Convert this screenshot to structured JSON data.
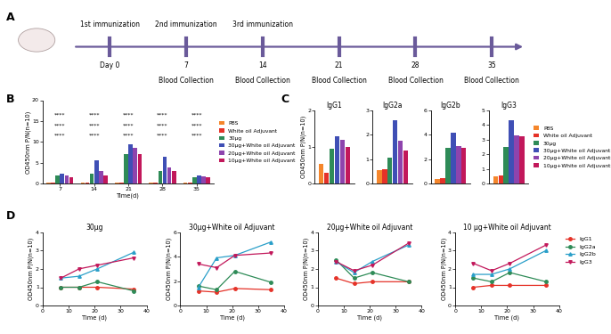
{
  "diagram": {
    "panel": "A",
    "events": [
      {
        "top": "1st immunization",
        "day": "Day 0",
        "bottom": null
      },
      {
        "top": "2nd immunization",
        "day": "7",
        "bottom": "Blood Collection"
      },
      {
        "top": "3rd immunization",
        "day": "14",
        "bottom": "Blood Collection"
      },
      {
        "top": null,
        "day": "21",
        "bottom": "Blood Collection"
      },
      {
        "top": null,
        "day": "28",
        "bottom": "Blood Collection"
      },
      {
        "top": null,
        "day": "35",
        "bottom": "Blood Collection"
      }
    ]
  },
  "chart_data": [
    {
      "panel": "B",
      "type": "bar",
      "categories": [
        "7",
        "14",
        "21",
        "28",
        "35"
      ],
      "x_label": "Time(d)",
      "y_label": "OD450nm P/N(n=10)",
      "ylim": [
        0,
        20
      ],
      "yticks": [
        0,
        5,
        10,
        15,
        20
      ],
      "legend": "center left",
      "series": [
        {
          "name": "PBS",
          "color": "#f5862b",
          "values": [
            0.3,
            0.3,
            0.3,
            0.3,
            0.3
          ]
        },
        {
          "name": "White oil Adjuvant",
          "color": "#e53228",
          "values": [
            0.3,
            0.3,
            0.3,
            0.3,
            0.3
          ]
        },
        {
          "name": "30μg",
          "color": "#2e8b57",
          "values": [
            2.0,
            2.5,
            7.0,
            3.0,
            1.5
          ]
        },
        {
          "name": "30μg+White oil Adjuvant",
          "color": "#3f4fb5",
          "values": [
            2.5,
            5.5,
            9.5,
            6.5,
            2.0
          ]
        },
        {
          "name": "20μg+White oil Adjuvant",
          "color": "#8e44ad",
          "values": [
            2.0,
            3.0,
            8.5,
            4.0,
            1.8
          ]
        },
        {
          "name": "10μg+White oil Adjuvant",
          "color": "#c2185b",
          "values": [
            1.5,
            2.0,
            7.0,
            3.0,
            1.5
          ]
        }
      ],
      "annotations": [
        {
          "category": "7",
          "texts": [
            "****",
            "****",
            "****"
          ]
        },
        {
          "category": "14",
          "texts": [
            "****",
            "****",
            "****"
          ]
        },
        {
          "category": "21",
          "texts": [
            "****",
            "****",
            "****"
          ]
        },
        {
          "category": "28",
          "texts": [
            "****",
            "****",
            "****"
          ]
        },
        {
          "category": "35",
          "texts": [
            "****",
            "****",
            "****"
          ]
        }
      ]
    },
    {
      "panel": "C",
      "type": "bar",
      "title": "IgG1",
      "categories": [
        null
      ],
      "y_label": "OD450nm P/N(n=10)",
      "ylim": [
        0,
        2
      ],
      "yticks": [
        0,
        1,
        2
      ],
      "series": [
        {
          "name": "PBS",
          "color": "#f5862b",
          "values": [
            0.55
          ]
        },
        {
          "name": "White oil Adjuvant",
          "color": "#e53228",
          "values": [
            0.3
          ]
        },
        {
          "name": "30μg",
          "color": "#2e8b57",
          "values": [
            0.95
          ]
        },
        {
          "name": "30μg+White oil Adjuvant",
          "color": "#3f4fb5",
          "values": [
            1.3
          ]
        },
        {
          "name": "20μg+White oil Adjuvant",
          "color": "#8e44ad",
          "values": [
            1.2
          ]
        },
        {
          "name": "10μg+White oil Adjuvant",
          "color": "#c2185b",
          "values": [
            1.0
          ]
        }
      ]
    },
    {
      "type": "bar",
      "title": "IgG2a",
      "categories": [
        null
      ],
      "ylim": [
        0,
        3
      ],
      "yticks": [
        0,
        1,
        2,
        3
      ],
      "series": [
        {
          "name": "PBS",
          "color": "#f5862b",
          "values": [
            0.55
          ]
        },
        {
          "name": "White oil Adjuvant",
          "color": "#e53228",
          "values": [
            0.6
          ]
        },
        {
          "name": "30μg",
          "color": "#2e8b57",
          "values": [
            1.05
          ]
        },
        {
          "name": "30μg+White oil Adjuvant",
          "color": "#3f4fb5",
          "values": [
            2.6
          ]
        },
        {
          "name": "20μg+White oil Adjuvant",
          "color": "#8e44ad",
          "values": [
            1.75
          ]
        },
        {
          "name": "10μg+White oil Adjuvant",
          "color": "#c2185b",
          "values": [
            1.35
          ]
        }
      ]
    },
    {
      "type": "bar",
      "title": "IgG2b",
      "categories": [
        null
      ],
      "ylim": [
        0,
        6
      ],
      "yticks": [
        0,
        2,
        4,
        6
      ],
      "series": [
        {
          "name": "PBS",
          "color": "#f5862b",
          "values": [
            0.4
          ]
        },
        {
          "name": "White oil Adjuvant",
          "color": "#e53228",
          "values": [
            0.45
          ]
        },
        {
          "name": "30μg",
          "color": "#2e8b57",
          "values": [
            2.9
          ]
        },
        {
          "name": "30μg+White oil Adjuvant",
          "color": "#3f4fb5",
          "values": [
            4.2
          ]
        },
        {
          "name": "20μg+White oil Adjuvant",
          "color": "#8e44ad",
          "values": [
            3.1
          ]
        },
        {
          "name": "10μg+White oil Adjuvant",
          "color": "#c2185b",
          "values": [
            2.9
          ]
        }
      ]
    },
    {
      "type": "bar",
      "title": "IgG3",
      "categories": [
        null
      ],
      "ylim": [
        0,
        5
      ],
      "yticks": [
        0,
        1,
        2,
        3,
        4,
        5
      ],
      "legend": "center left",
      "series": [
        {
          "name": "PBS",
          "color": "#f5862b",
          "values": [
            0.5
          ]
        },
        {
          "name": "White oil Adjuvant",
          "color": "#e53228",
          "values": [
            0.55
          ]
        },
        {
          "name": "30μg",
          "color": "#2e8b57",
          "values": [
            2.5
          ]
        },
        {
          "name": "30μg+White oil Adjuvant",
          "color": "#3f4fb5",
          "values": [
            4.3
          ]
        },
        {
          "name": "20μg+White oil Adjuvant",
          "color": "#8e44ad",
          "values": [
            3.3
          ]
        },
        {
          "name": "10μg+White oil Adjuvant",
          "color": "#c2185b",
          "values": [
            3.2
          ]
        }
      ]
    },
    {
      "panel": "D",
      "type": "line",
      "title": "30μg",
      "x": [
        7,
        14,
        21,
        35
      ],
      "x_label": "Time (d)",
      "y_label": "OD450nm P/N(n=10)",
      "xlim": [
        0,
        40
      ],
      "xticks": [
        0,
        10,
        20,
        30,
        40
      ],
      "ylim": [
        0,
        4
      ],
      "yticks": [
        0,
        1,
        2,
        3,
        4
      ],
      "series": [
        {
          "name": "IgG1",
          "color": "#e53228",
          "marker": "o",
          "values": [
            1.0,
            1.0,
            1.0,
            0.9
          ]
        },
        {
          "name": "IgG2a",
          "color": "#2e8b57",
          "marker": "o",
          "values": [
            1.0,
            1.0,
            1.3,
            0.8
          ]
        },
        {
          "name": "IgG2b",
          "color": "#2a9fc9",
          "marker": "^",
          "values": [
            1.5,
            1.6,
            2.0,
            2.9
          ]
        },
        {
          "name": "IgG3",
          "color": "#c2185b",
          "marker": "v",
          "values": [
            1.5,
            2.0,
            2.2,
            2.6
          ]
        }
      ]
    },
    {
      "type": "line",
      "title": "30μg+White oil Adjuvant",
      "x": [
        7,
        14,
        21,
        35
      ],
      "x_label": "Time (d)",
      "y_label": "OD450nm P/N(n=10)",
      "xlim": [
        0,
        40
      ],
      "xticks": [
        0,
        10,
        20,
        30,
        40
      ],
      "ylim": [
        0,
        6
      ],
      "yticks": [
        0,
        2,
        4,
        6
      ],
      "series": [
        {
          "name": "IgG1",
          "color": "#e53228",
          "marker": "o",
          "values": [
            1.2,
            1.1,
            1.4,
            1.3
          ]
        },
        {
          "name": "IgG2a",
          "color": "#2e8b57",
          "marker": "o",
          "values": [
            1.6,
            1.3,
            2.8,
            1.9
          ]
        },
        {
          "name": "IgG2b",
          "color": "#2a9fc9",
          "marker": "^",
          "values": [
            1.5,
            3.9,
            4.1,
            5.2
          ]
        },
        {
          "name": "IgG3",
          "color": "#c2185b",
          "marker": "v",
          "values": [
            3.4,
            3.1,
            4.1,
            4.3
          ]
        }
      ]
    },
    {
      "type": "line",
      "title": "20μg+White oil Adjuvant",
      "x": [
        7,
        14,
        21,
        35
      ],
      "x_label": "Time (d)",
      "y_label": "OD450nm P/N(n=10)",
      "xlim": [
        0,
        40
      ],
      "xticks": [
        0,
        10,
        20,
        30,
        40
      ],
      "ylim": [
        0,
        4
      ],
      "yticks": [
        0,
        1,
        2,
        3,
        4
      ],
      "series": [
        {
          "name": "IgG1",
          "color": "#e53228",
          "marker": "o",
          "values": [
            1.5,
            1.2,
            1.3,
            1.3
          ]
        },
        {
          "name": "IgG2a",
          "color": "#2e8b57",
          "marker": "o",
          "values": [
            2.5,
            1.5,
            1.8,
            1.3
          ]
        },
        {
          "name": "IgG2b",
          "color": "#2a9fc9",
          "marker": "^",
          "values": [
            2.4,
            1.8,
            2.4,
            3.3
          ]
        },
        {
          "name": "IgG3",
          "color": "#c2185b",
          "marker": "v",
          "values": [
            2.4,
            1.9,
            2.2,
            3.4
          ]
        }
      ]
    },
    {
      "type": "line",
      "title": "10 μg+White oil Adjuvant",
      "x": [
        7,
        14,
        21,
        35
      ],
      "x_label": "Time (d)",
      "y_label": "OD450nm P/N(n=10)",
      "xlim": [
        0,
        40
      ],
      "xticks": [
        0,
        10,
        20,
        30,
        40
      ],
      "ylim": [
        0,
        4
      ],
      "yticks": [
        0,
        1,
        2,
        3,
        4
      ],
      "legend": "center left",
      "series": [
        {
          "name": "IgG1",
          "color": "#e53228",
          "marker": "o",
          "values": [
            1.0,
            1.1,
            1.1,
            1.1
          ]
        },
        {
          "name": "IgG2a",
          "color": "#2e8b57",
          "marker": "o",
          "values": [
            1.5,
            1.3,
            1.8,
            1.3
          ]
        },
        {
          "name": "IgG2b",
          "color": "#2a9fc9",
          "marker": "^",
          "values": [
            1.7,
            1.7,
            2.0,
            3.0
          ]
        },
        {
          "name": "IgG3",
          "color": "#c2185b",
          "marker": "v",
          "values": [
            2.3,
            1.9,
            2.3,
            3.3
          ]
        }
      ]
    }
  ]
}
